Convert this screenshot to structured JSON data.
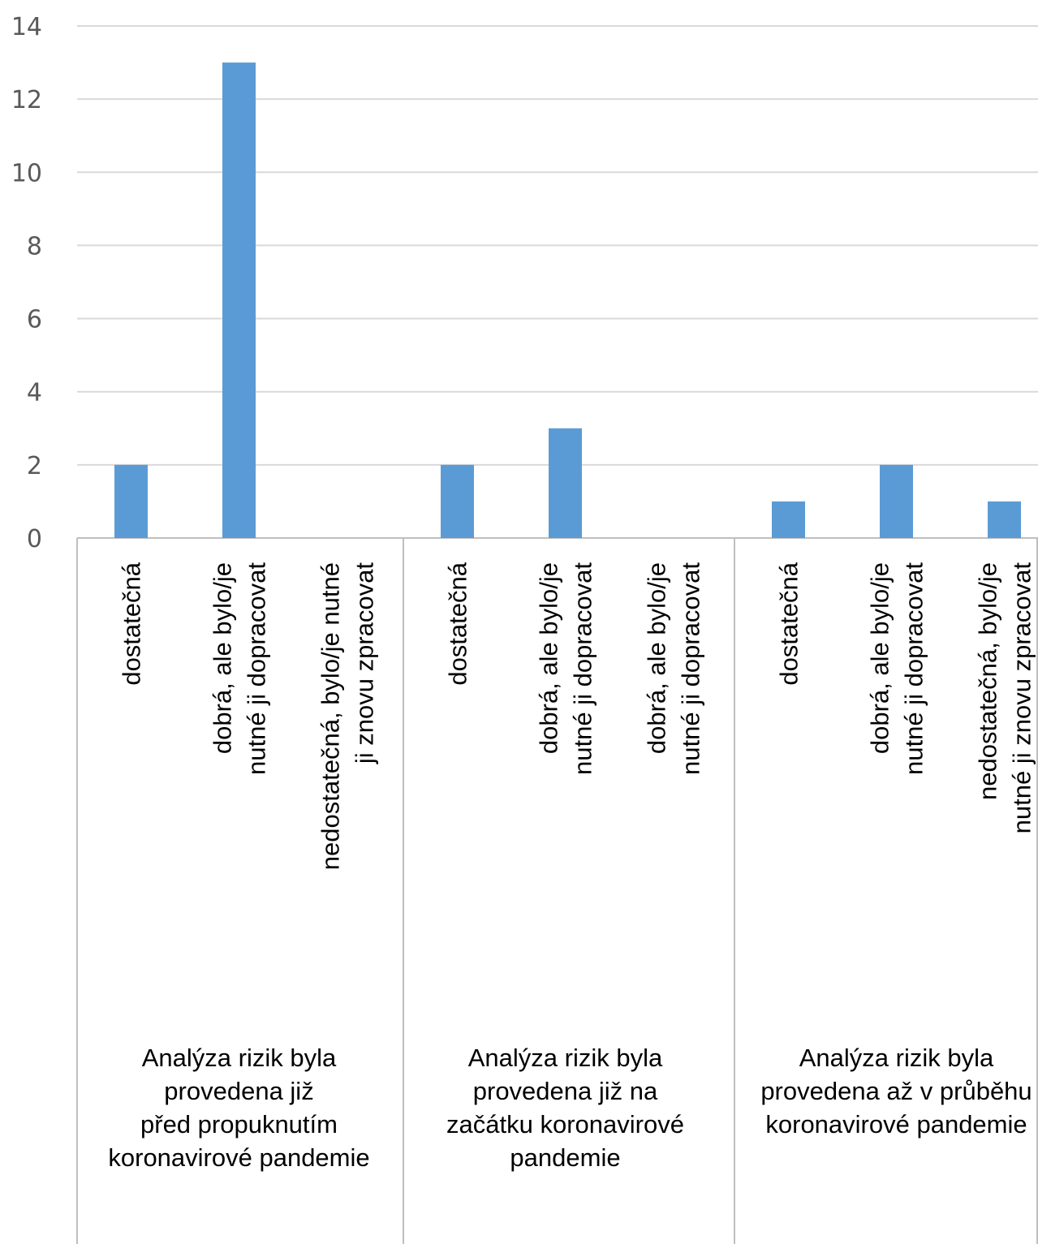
{
  "chart_data": {
    "type": "bar",
    "title": "",
    "xlabel": "",
    "ylabel": "",
    "ylim": [
      0,
      14
    ],
    "yticks": [
      0,
      2,
      4,
      6,
      8,
      10,
      12,
      14
    ],
    "grid": true,
    "bar_color": "#5b9bd5",
    "groups": [
      {
        "label_lines": [
          "Analýza rizik byla",
          "provedena již",
          "před propuknutím",
          "koronavirové pandemie"
        ],
        "categories": [
          {
            "lines": [
              "dostatečná"
            ],
            "value": 2
          },
          {
            "lines": [
              "dobrá, ale bylo/je",
              "nutné ji dopracovat"
            ],
            "value": 13
          },
          {
            "lines": [
              "nedostatečná, bylo/je nutné",
              "ji znovu zpracovat"
            ],
            "value": 0
          }
        ]
      },
      {
        "label_lines": [
          "Analýza rizik byla",
          "provedena již na",
          "začátku koronavirové",
          "pandemie"
        ],
        "categories": [
          {
            "lines": [
              "dostatečná"
            ],
            "value": 2
          },
          {
            "lines": [
              "dobrá, ale bylo/je",
              "nutné ji dopracovat"
            ],
            "value": 3
          },
          {
            "lines": [
              "dobrá, ale bylo/je",
              "nutné ji dopracovat"
            ],
            "value": 0
          }
        ]
      },
      {
        "label_lines": [
          "Analýza rizik byla",
          "provedena až v průběhu",
          "koronavirové pandemie"
        ],
        "categories": [
          {
            "lines": [
              "dostatečná"
            ],
            "value": 1
          },
          {
            "lines": [
              "dobrá, ale bylo/je",
              "nutné ji dopracovat"
            ],
            "value": 2
          },
          {
            "lines": [
              "nedostatečná, bylo/je",
              "nutné ji znovu zpracovat"
            ],
            "value": 1
          }
        ]
      }
    ]
  }
}
